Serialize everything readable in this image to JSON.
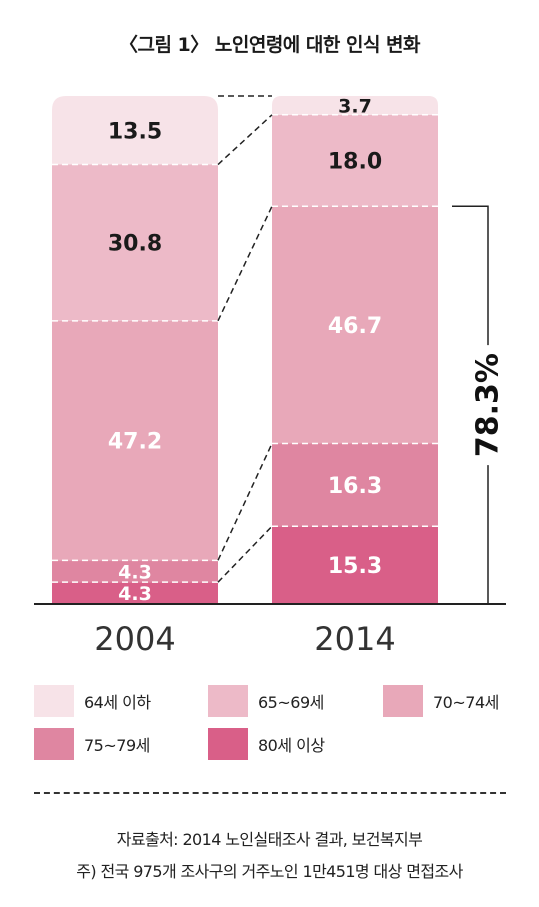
{
  "title": "〈그림 1〉 노인연령에 대한 인식 변화",
  "chart_data": {
    "type": "bar",
    "stacked": true,
    "unit": "%",
    "categories": [
      "2004",
      "2014"
    ],
    "series": [
      {
        "name": "80세 이상",
        "values": [
          4.3,
          15.3
        ],
        "color": "#d95f88"
      },
      {
        "name": "75~79세",
        "values": [
          4.3,
          16.3
        ],
        "color": "#df86a1"
      },
      {
        "name": "70~74세",
        "values": [
          47.2,
          46.7
        ],
        "color": "#e8a8b9"
      },
      {
        "name": "65~69세",
        "values": [
          30.8,
          18.0
        ],
        "color": "#edbac8"
      },
      {
        "name": "64세 이하",
        "values": [
          13.5,
          3.7
        ],
        "color": "#f7e3e8"
      }
    ],
    "bracket_label": "78.3%",
    "ylim": [
      0,
      100
    ]
  },
  "legend": [
    {
      "label": "64세 이하",
      "color": "#f7e3e8"
    },
    {
      "label": "65~69세",
      "color": "#edbac8"
    },
    {
      "label": "70~74세",
      "color": "#e8a8b9"
    },
    {
      "label": "75~79세",
      "color": "#df86a1"
    },
    {
      "label": "80세 이상",
      "color": "#d95f88"
    }
  ],
  "source": {
    "line1": "자료출처: 2014 노인실태조사 결과, 보건복지부",
    "line2": "주) 전국 975개 조사구의 거주노인 1만451명 대상 면접조사"
  }
}
